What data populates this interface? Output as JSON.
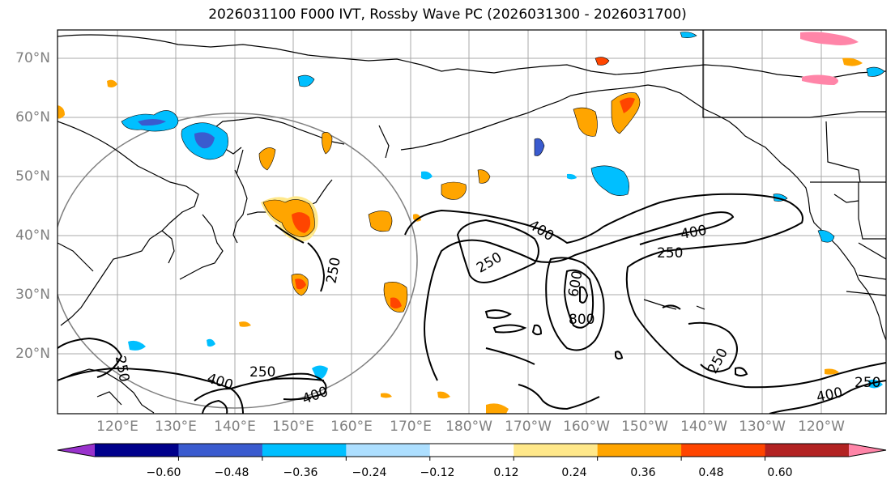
{
  "title": "2026031100 F000 IVT, Rossby Wave PC (2026031300 - 2026031700)",
  "lat_labels": [
    "70°N",
    "60°N",
    "50°N",
    "40°N",
    "30°N",
    "20°N"
  ],
  "lon_labels": [
    "120°E",
    "130°E",
    "140°E",
    "150°E",
    "160°E",
    "170°E",
    "180°W",
    "170°W",
    "160°W",
    "150°W",
    "140°W",
    "130°W",
    "120°W"
  ],
  "contour_labels": [
    "400",
    "250",
    "250",
    "600",
    "800",
    "400",
    "250",
    "250",
    "400",
    "250",
    "250",
    "400",
    "250",
    "400"
  ],
  "colorbar": {
    "colors": [
      "#9932CC",
      "#00008B",
      "#3A5BCF",
      "#00BFFF",
      "#ADDFFF",
      "#FFFFFF",
      "#FFE88A",
      "#FFA500",
      "#FF4500",
      "#B22222",
      "#FF85A8"
    ],
    "tick_labels": [
      "−0.60",
      "−0.48",
      "−0.36",
      "−0.24",
      "−0.12",
      "0.12",
      "0.24",
      "0.36",
      "0.48",
      "0.60"
    ]
  }
}
